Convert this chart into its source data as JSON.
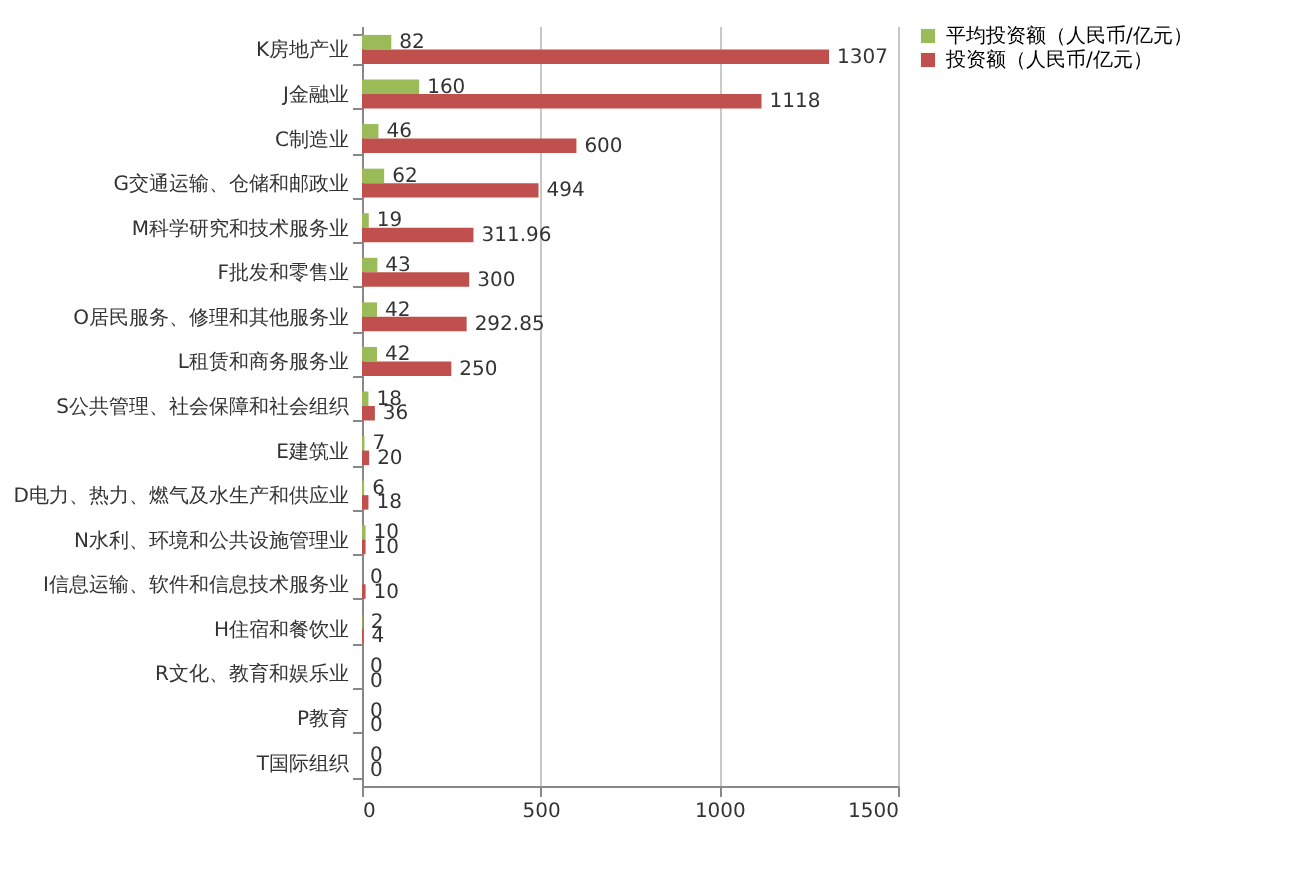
{
  "chart_data": {
    "type": "bar",
    "orientation": "horizontal",
    "categories": [
      "K房地产业",
      "J金融业",
      "C制造业",
      "G交通运输、仓储和邮政业",
      "M科学研究和技术服务业",
      "F批发和零售业",
      "O居民服务、修理和其他服务业",
      "L租赁和商务服务业",
      "S公共管理、社会保障和社会组织",
      "E建筑业",
      "D电力、热力、燃气及水生产和供应业",
      "N水利、环境和公共设施管理业",
      "I信息运输、软件和信息技术服务业",
      "H住宿和餐饮业",
      "R文化、教育和娱乐业",
      "P教育",
      "T国际组织"
    ],
    "series": [
      {
        "name": "平均投资额（人民币/亿元）",
        "color": "#9bbb59",
        "values": [
          82,
          160,
          46,
          62,
          19,
          43,
          42,
          42,
          18,
          7,
          6,
          10,
          0,
          2,
          0,
          0,
          0
        ]
      },
      {
        "name": "投资额（人民币/亿元）",
        "color": "#c0504d",
        "values": [
          1307,
          1118,
          600,
          494,
          311.96,
          300,
          292.85,
          250,
          36,
          20,
          18,
          10,
          10,
          4,
          0,
          0,
          0
        ]
      }
    ],
    "xlim": [
      0,
      1500
    ],
    "xticks": [
      0,
      500,
      1000,
      1500
    ],
    "grid": "x",
    "legend": "right",
    "data_labels": true
  }
}
